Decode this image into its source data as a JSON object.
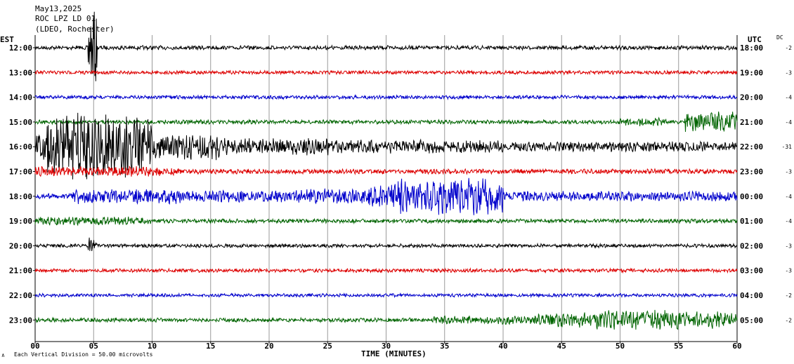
{
  "header": {
    "date": "May13,2025",
    "station": "ROC LPZ LD 01",
    "network": "(LDEO, Rochester)"
  },
  "left_axis_label": "EST",
  "right_axis_label": "UTC",
  "dc_label": "DC",
  "x_axis_title": "TIME (MINUTES)",
  "scale_note": "Each Vertical Division =   50.00 microvolts",
  "corner_mark": "∧",
  "colors": {
    "black": "#000000",
    "red": "#dd0000",
    "blue": "#0000cc",
    "green": "#006400"
  },
  "chart_data": {
    "type": "line",
    "x": [
      "00",
      "05",
      "10",
      "15",
      "20",
      "25",
      "30",
      "35",
      "40",
      "45",
      "50",
      "55",
      "60"
    ],
    "xlim": [
      0,
      60
    ],
    "grid": true,
    "series": [
      {
        "left": "12:00",
        "right": "18:00",
        "dc": "-2",
        "color": "#000000"
      },
      {
        "left": "13:00",
        "right": "19:00",
        "dc": "-3",
        "color": "#dd0000"
      },
      {
        "left": "14:00",
        "right": "20:00",
        "dc": "-4",
        "color": "#0000cc"
      },
      {
        "left": "15:00",
        "right": "21:00",
        "dc": "-4",
        "color": "#006400"
      },
      {
        "left": "16:00",
        "right": "22:00",
        "dc": "-31",
        "color": "#000000"
      },
      {
        "left": "17:00",
        "right": "23:00",
        "dc": "-3",
        "color": "#dd0000"
      },
      {
        "left": "18:00",
        "right": "00:00",
        "dc": "-4",
        "color": "#0000cc"
      },
      {
        "left": "19:00",
        "right": "01:00",
        "dc": "-4",
        "color": "#006400"
      },
      {
        "left": "20:00",
        "right": "02:00",
        "dc": "-3",
        "color": "#000000"
      },
      {
        "left": "21:00",
        "right": "03:00",
        "dc": "-3",
        "color": "#dd0000"
      },
      {
        "left": "22:00",
        "right": "04:00",
        "dc": "-2",
        "color": "#0000cc"
      },
      {
        "left": "23:00",
        "right": "05:00",
        "dc": "-2",
        "color": "#006400"
      }
    ]
  }
}
